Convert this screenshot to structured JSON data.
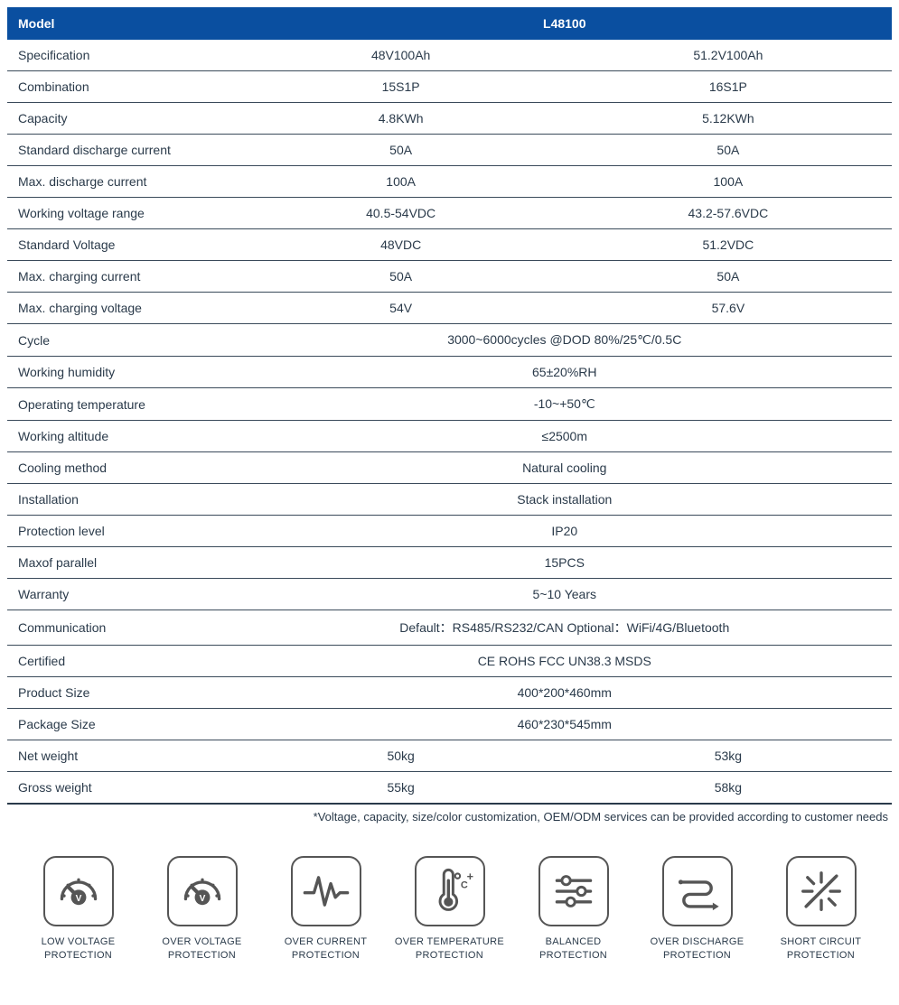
{
  "table": {
    "header": {
      "model_label": "Model",
      "model_name": "L48100"
    },
    "rows": [
      {
        "type": "split",
        "label": "Specification",
        "col1": "48V100Ah",
        "col2": "51.2V100Ah"
      },
      {
        "type": "split",
        "label": "Combination",
        "col1": "15S1P",
        "col2": "16S1P"
      },
      {
        "type": "split",
        "label": "Capacity",
        "col1": "4.8KWh",
        "col2": "5.12KWh"
      },
      {
        "type": "split",
        "label": "Standard discharge current",
        "col1": "50A",
        "col2": "50A"
      },
      {
        "type": "split",
        "label": "Max. discharge current",
        "col1": "100A",
        "col2": "100A"
      },
      {
        "type": "split",
        "label": "Working voltage range",
        "col1": "40.5-54VDC",
        "col2": "43.2-57.6VDC"
      },
      {
        "type": "split",
        "label": "Standard Voltage",
        "col1": "48VDC",
        "col2": "51.2VDC"
      },
      {
        "type": "split",
        "label": "Max. charging current",
        "col1": "50A",
        "col2": "50A"
      },
      {
        "type": "split",
        "label": "Max. charging voltage",
        "col1": "54V",
        "col2": "57.6V"
      },
      {
        "type": "merged",
        "label": "Cycle",
        "value": "3000~6000cycles @DOD 80%/25℃/0.5C"
      },
      {
        "type": "merged",
        "label": "Working humidity",
        "value": "65±20%RH"
      },
      {
        "type": "merged",
        "label": "Operating temperature",
        "value": "-10~+50℃"
      },
      {
        "type": "merged",
        "label": "Working altitude",
        "value": "≤2500m"
      },
      {
        "type": "merged",
        "label": "Cooling method",
        "value": "Natural cooling"
      },
      {
        "type": "merged",
        "label": "Installation",
        "value": "Stack installation"
      },
      {
        "type": "merged",
        "label": "Protection level",
        "value": "IP20"
      },
      {
        "type": "merged",
        "label": "Maxof parallel",
        "value": "15PCS"
      },
      {
        "type": "merged",
        "label": "Warranty",
        "value": "5~10 Years"
      },
      {
        "type": "merged",
        "label": "Communication",
        "value": "Default：RS485/RS232/CAN  Optional：WiFi/4G/Bluetooth"
      },
      {
        "type": "merged",
        "label": "Certified",
        "value": "CE ROHS FCC UN38.3 MSDS"
      },
      {
        "type": "merged",
        "label": "Product Size",
        "value": "400*200*460mm"
      },
      {
        "type": "merged",
        "label": "Package Size",
        "value": "460*230*545mm"
      },
      {
        "type": "split",
        "label": "Net weight",
        "col1": "50kg",
        "col2": "53kg"
      },
      {
        "type": "split",
        "label": "Gross weight",
        "col1": "55kg",
        "col2": "58kg"
      }
    ],
    "footnote": "*Voltage, capacity, size/color customization, OEM/ODM services can be provided according to customer needs"
  },
  "features": [
    {
      "icon": "gauge-v",
      "line1": "LOW VOLTAGE",
      "line2": "PROTECTION"
    },
    {
      "icon": "gauge-v",
      "line1": "OVER VOLTAGE",
      "line2": "PROTECTION"
    },
    {
      "icon": "pulse",
      "line1": "OVER CURRENT",
      "line2": "PROTECTION"
    },
    {
      "icon": "thermometer",
      "line1": "OVER TEMPERATURE",
      "line2": "PROTECTION"
    },
    {
      "icon": "sliders",
      "line1": "BALANCED",
      "line2": "PROTECTION"
    },
    {
      "icon": "discharge",
      "line1": "OVER DISCHARGE",
      "line2": "PROTECTION"
    },
    {
      "icon": "short",
      "line1": "SHORT CIRCUIT",
      "line2": "PROTECTION"
    }
  ],
  "colors": {
    "header_bg": "#0a4fa0",
    "header_fg": "#ffffff",
    "text": "#2a3a4a",
    "border": "#3a4a5a",
    "icon_stroke": "#555555"
  }
}
